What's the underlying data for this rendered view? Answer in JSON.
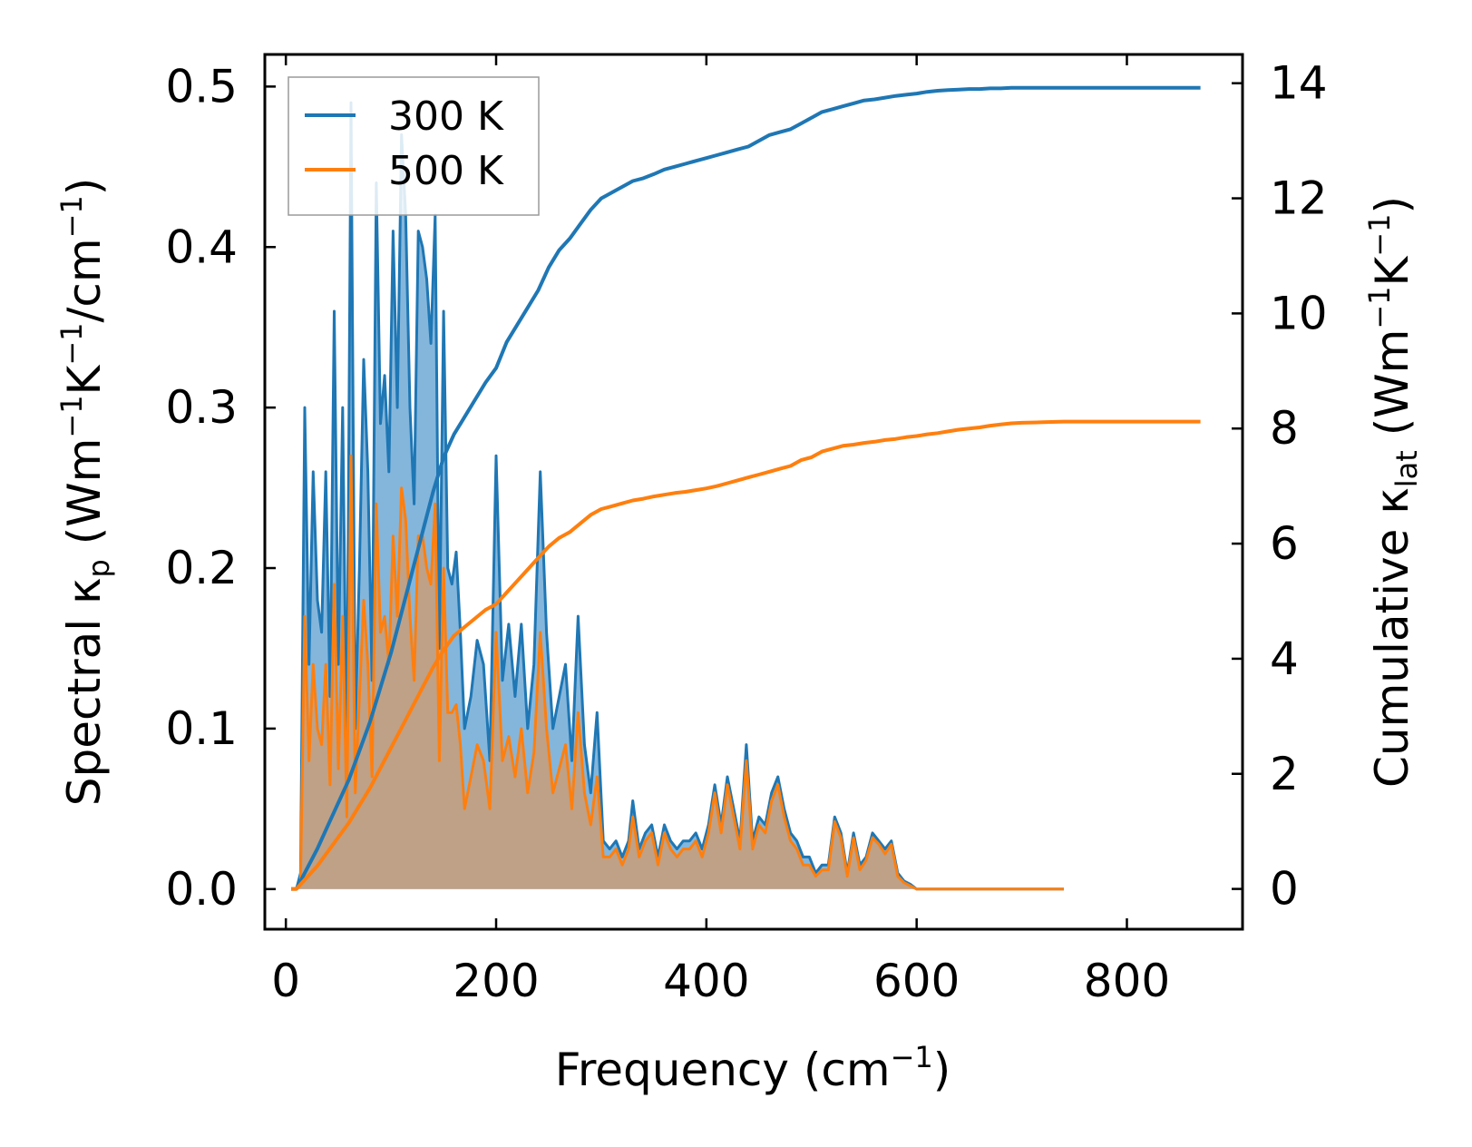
{
  "chart_data": {
    "type": "area+line",
    "xlabel": "Frequency (cm",
    "xlabel_sup": "−1",
    "xlabel_end": ")",
    "ylabel_left_main": "Spectral κ",
    "ylabel_left_sub": "p",
    "ylabel_left_rest": " (Wm",
    "ylabel_left_sup1": "−1",
    "ylabel_left_k": "K",
    "ylabel_left_sup2": "−1",
    "ylabel_left_unit": "/cm",
    "ylabel_left_sup3": "−1",
    "ylabel_left_end": ")",
    "ylabel_right_main": "Cumulative κ",
    "ylabel_right_sub": "lat",
    "ylabel_right_rest": " (Wm",
    "ylabel_right_sup1": "−1",
    "ylabel_right_k": "K",
    "ylabel_right_sup2": "−1",
    "ylabel_right_end": ")",
    "xlim": [
      -20,
      910
    ],
    "ylim_left": [
      -0.025,
      0.52
    ],
    "ylim_right": [
      -0.7,
      14.5
    ],
    "xticks": [
      0,
      200,
      400,
      600,
      800
    ],
    "xtick_labels": [
      "0",
      "200",
      "400",
      "600",
      "800"
    ],
    "yticks_left": [
      0.0,
      0.1,
      0.2,
      0.3,
      0.4,
      0.5
    ],
    "ytick_labels_left": [
      "0.0",
      "0.1",
      "0.2",
      "0.3",
      "0.4",
      "0.5"
    ],
    "yticks_right": [
      0,
      2,
      4,
      6,
      8,
      10,
      12,
      14
    ],
    "ytick_labels_right": [
      "0",
      "2",
      "4",
      "6",
      "8",
      "10",
      "12",
      "14"
    ],
    "legend": {
      "position": "upper-left",
      "entries": [
        "300 K",
        "500 K"
      ]
    },
    "colors": {
      "s300": "#1f77b4",
      "s500": "#ff7f0e",
      "fill300": "#5b9ed0",
      "fill500": "#d29a6b"
    },
    "spectral_x": [
      5,
      10,
      14,
      18,
      22,
      26,
      30,
      34,
      38,
      42,
      46,
      50,
      54,
      58,
      62,
      66,
      70,
      74,
      78,
      82,
      86,
      90,
      94,
      98,
      102,
      106,
      110,
      114,
      118,
      122,
      126,
      130,
      134,
      138,
      142,
      146,
      150,
      154,
      158,
      162,
      166,
      170,
      176,
      182,
      188,
      194,
      200,
      206,
      212,
      218,
      224,
      230,
      236,
      242,
      248,
      254,
      260,
      266,
      272,
      278,
      284,
      290,
      296,
      302,
      308,
      314,
      320,
      326,
      330,
      336,
      342,
      348,
      354,
      360,
      366,
      372,
      378,
      384,
      390,
      396,
      402,
      408,
      414,
      420,
      426,
      432,
      438,
      444,
      450,
      456,
      462,
      468,
      474,
      480,
      486,
      492,
      498,
      504,
      510,
      516,
      522,
      528,
      534,
      540,
      546,
      552,
      558,
      564,
      570,
      576,
      582,
      588,
      594,
      600,
      606,
      612,
      618,
      624,
      630,
      636,
      642,
      648,
      654,
      660,
      666,
      672,
      678,
      684,
      690,
      700,
      710,
      720,
      730,
      740,
      760,
      800,
      870
    ],
    "spectral_300": [
      0,
      0,
      0.01,
      0.3,
      0.14,
      0.26,
      0.18,
      0.16,
      0.26,
      0.12,
      0.36,
      0.14,
      0.3,
      0.08,
      0.49,
      0.1,
      0.2,
      0.33,
      0.26,
      0.13,
      0.44,
      0.29,
      0.32,
      0.26,
      0.41,
      0.3,
      0.47,
      0.42,
      0.3,
      0.24,
      0.41,
      0.4,
      0.38,
      0.34,
      0.42,
      0.15,
      0.36,
      0.2,
      0.19,
      0.21,
      0.16,
      0.1,
      0.12,
      0.155,
      0.14,
      0.08,
      0.27,
      0.13,
      0.165,
      0.12,
      0.165,
      0.1,
      0.14,
      0.26,
      0.16,
      0.1,
      0.12,
      0.14,
      0.08,
      0.17,
      0.09,
      0.06,
      0.11,
      0.03,
      0.025,
      0.03,
      0.02,
      0.03,
      0.055,
      0.025,
      0.035,
      0.04,
      0.02,
      0.04,
      0.03,
      0.025,
      0.03,
      0.03,
      0.035,
      0.025,
      0.04,
      0.065,
      0.04,
      0.07,
      0.05,
      0.03,
      0.09,
      0.03,
      0.045,
      0.04,
      0.06,
      0.07,
      0.05,
      0.035,
      0.03,
      0.02,
      0.02,
      0.01,
      0.015,
      0.015,
      0.045,
      0.035,
      0.01,
      0.035,
      0.015,
      0.02,
      0.035,
      0.03,
      0.025,
      0.03,
      0.01,
      0.005,
      0.003,
      0,
      0,
      0,
      0,
      0,
      0,
      0,
      0,
      0,
      0,
      0,
      0,
      0,
      0,
      0,
      0,
      0,
      0,
      0,
      0,
      0
    ],
    "spectral_500": [
      0,
      0,
      0.005,
      0.17,
      0.08,
      0.14,
      0.1,
      0.09,
      0.14,
      0.065,
      0.19,
      0.075,
      0.17,
      0.045,
      0.27,
      0.06,
      0.12,
      0.18,
      0.14,
      0.07,
      0.24,
      0.16,
      0.17,
      0.14,
      0.22,
      0.17,
      0.25,
      0.23,
      0.17,
      0.13,
      0.22,
      0.22,
      0.2,
      0.19,
      0.24,
      0.08,
      0.2,
      0.11,
      0.11,
      0.115,
      0.09,
      0.05,
      0.07,
      0.09,
      0.08,
      0.05,
      0.16,
      0.08,
      0.095,
      0.07,
      0.1,
      0.06,
      0.085,
      0.16,
      0.1,
      0.06,
      0.075,
      0.09,
      0.05,
      0.11,
      0.06,
      0.04,
      0.07,
      0.02,
      0.02,
      0.025,
      0.015,
      0.025,
      0.045,
      0.02,
      0.03,
      0.035,
      0.015,
      0.035,
      0.025,
      0.02,
      0.025,
      0.025,
      0.03,
      0.02,
      0.035,
      0.06,
      0.035,
      0.065,
      0.045,
      0.025,
      0.08,
      0.025,
      0.04,
      0.035,
      0.055,
      0.065,
      0.045,
      0.03,
      0.025,
      0.015,
      0.015,
      0.008,
      0.012,
      0.012,
      0.042,
      0.032,
      0.008,
      0.032,
      0.012,
      0.018,
      0.032,
      0.028,
      0.022,
      0.028,
      0.008,
      0.004,
      0.002,
      0,
      0,
      0,
      0,
      0,
      0,
      0,
      0,
      0,
      0,
      0,
      0,
      0,
      0,
      0,
      0,
      0,
      0,
      0,
      0,
      0
    ],
    "cumulative_x": [
      5,
      10,
      20,
      30,
      40,
      50,
      60,
      70,
      80,
      90,
      100,
      110,
      120,
      130,
      140,
      150,
      160,
      170,
      180,
      190,
      200,
      210,
      220,
      230,
      240,
      250,
      260,
      270,
      280,
      290,
      300,
      310,
      320,
      330,
      340,
      350,
      360,
      370,
      380,
      390,
      400,
      410,
      420,
      430,
      440,
      450,
      460,
      470,
      480,
      490,
      500,
      510,
      520,
      530,
      540,
      550,
      560,
      570,
      580,
      590,
      600,
      610,
      620,
      630,
      640,
      650,
      660,
      670,
      680,
      690,
      700,
      720,
      740,
      780,
      820,
      870
    ],
    "cumulative_300": [
      0,
      0,
      0.35,
      0.7,
      1.1,
      1.5,
      1.9,
      2.4,
      2.9,
      3.5,
      4.1,
      4.8,
      5.5,
      6.2,
      6.9,
      7.5,
      7.9,
      8.2,
      8.5,
      8.8,
      9.05,
      9.5,
      9.8,
      10.1,
      10.4,
      10.8,
      11.1,
      11.3,
      11.55,
      11.8,
      12.0,
      12.1,
      12.2,
      12.3,
      12.35,
      12.42,
      12.5,
      12.55,
      12.6,
      12.65,
      12.7,
      12.75,
      12.8,
      12.85,
      12.9,
      13.0,
      13.1,
      13.15,
      13.2,
      13.3,
      13.4,
      13.5,
      13.55,
      13.6,
      13.65,
      13.7,
      13.72,
      13.75,
      13.78,
      13.8,
      13.82,
      13.85,
      13.87,
      13.88,
      13.89,
      13.9,
      13.9,
      13.91,
      13.91,
      13.92,
      13.92,
      13.92,
      13.92,
      13.92,
      13.92,
      13.92
    ],
    "cumulative_500": [
      0,
      0,
      0.2,
      0.4,
      0.65,
      0.9,
      1.15,
      1.45,
      1.75,
      2.1,
      2.45,
      2.8,
      3.15,
      3.5,
      3.85,
      4.15,
      4.4,
      4.55,
      4.7,
      4.85,
      4.95,
      5.15,
      5.35,
      5.55,
      5.75,
      5.95,
      6.1,
      6.2,
      6.35,
      6.5,
      6.6,
      6.65,
      6.7,
      6.75,
      6.78,
      6.82,
      6.85,
      6.88,
      6.9,
      6.93,
      6.96,
      7.0,
      7.05,
      7.1,
      7.15,
      7.2,
      7.25,
      7.3,
      7.35,
      7.45,
      7.5,
      7.6,
      7.65,
      7.7,
      7.72,
      7.75,
      7.77,
      7.8,
      7.82,
      7.85,
      7.87,
      7.9,
      7.92,
      7.95,
      7.98,
      8.0,
      8.02,
      8.05,
      8.07,
      8.09,
      8.1,
      8.11,
      8.12,
      8.12,
      8.12,
      8.12
    ]
  }
}
